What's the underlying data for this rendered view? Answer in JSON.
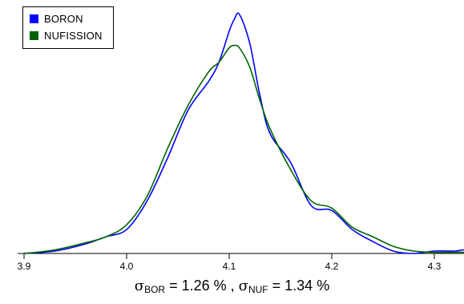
{
  "chart_data": {
    "type": "line",
    "title": "",
    "xlabel": "",
    "ylabel": "",
    "xlim": [
      3.9,
      4.37
    ],
    "ylim": [
      0,
      1.05
    ],
    "xticks": [
      3.9,
      4.0,
      4.1,
      4.2,
      4.3
    ],
    "xtick_labels": [
      "3.9",
      "4.0",
      "4.1",
      "4.2",
      "4.3"
    ],
    "grid": false,
    "legend_position": "top-left",
    "series": [
      {
        "name": "BORON",
        "color": "#0000ff",
        "x": [
          3.9,
          3.93,
          3.96,
          3.98,
          4.0,
          4.02,
          4.04,
          4.06,
          4.08,
          4.09,
          4.1,
          4.105,
          4.11,
          4.12,
          4.13,
          4.14,
          4.16,
          4.18,
          4.2,
          4.22,
          4.24,
          4.26,
          4.28,
          4.3,
          4.32,
          4.33,
          4.35,
          4.37
        ],
        "y": [
          0.0,
          0.01,
          0.04,
          0.07,
          0.1,
          0.22,
          0.4,
          0.6,
          0.72,
          0.8,
          0.93,
          0.98,
          1.0,
          0.88,
          0.66,
          0.5,
          0.38,
          0.2,
          0.18,
          0.1,
          0.05,
          0.01,
          0.0,
          0.01,
          0.01,
          0.015,
          0.005,
          0.0
        ]
      },
      {
        "name": "NUFISSION",
        "color": "#006400",
        "x": [
          3.9,
          3.93,
          3.96,
          3.98,
          4.0,
          4.02,
          4.04,
          4.06,
          4.08,
          4.09,
          4.1,
          4.105,
          4.11,
          4.12,
          4.13,
          4.14,
          4.16,
          4.18,
          4.2,
          4.22,
          4.24,
          4.26,
          4.28,
          4.3,
          4.32,
          4.33,
          4.35,
          4.37
        ],
        "y": [
          0.0,
          0.015,
          0.045,
          0.07,
          0.12,
          0.24,
          0.44,
          0.62,
          0.76,
          0.8,
          0.86,
          0.87,
          0.86,
          0.78,
          0.64,
          0.52,
          0.35,
          0.22,
          0.19,
          0.11,
          0.07,
          0.03,
          0.01,
          0.005,
          0.005,
          0.005,
          0.005,
          0.0
        ]
      }
    ]
  },
  "caption": {
    "sigma1_symbol": "σ",
    "sigma1_sub": "BOR",
    "sigma1_value": " = 1.26 % ,  ",
    "sigma2_symbol": "σ",
    "sigma2_sub": "NUF",
    "sigma2_value": " = 1.34 %"
  }
}
